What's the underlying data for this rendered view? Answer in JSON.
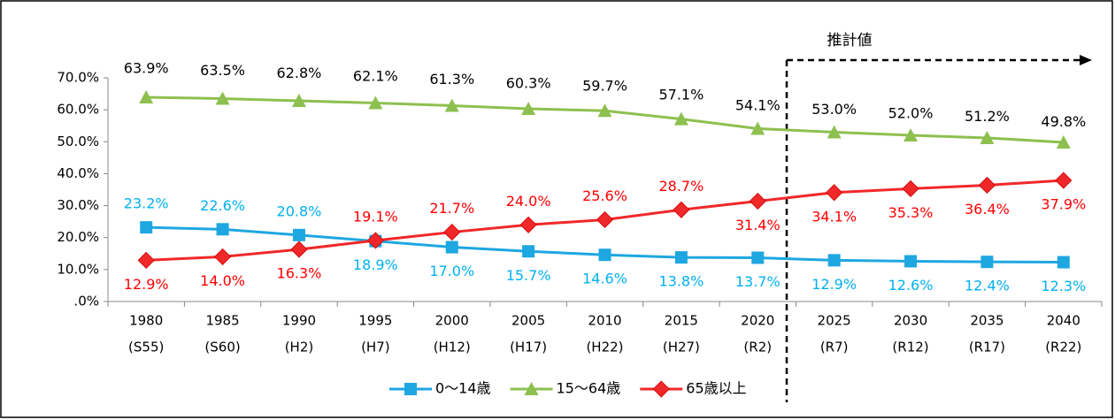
{
  "chart_data": {
    "type": "line",
    "annotation": "推計値",
    "categories": [
      [
        "1980",
        "(S55)"
      ],
      [
        "1985",
        "(S60)"
      ],
      [
        "1990",
        "(H2)"
      ],
      [
        "1995",
        "(H7)"
      ],
      [
        "2000",
        "(H12)"
      ],
      [
        "2005",
        "(H17)"
      ],
      [
        "2010",
        "(H22)"
      ],
      [
        "2015",
        "(H27)"
      ],
      [
        "2020",
        "(R2)"
      ],
      [
        "2025",
        "(R7)"
      ],
      [
        "2030",
        "(R12)"
      ],
      [
        "2035",
        "(R17)"
      ],
      [
        "2040",
        "(R22)"
      ]
    ],
    "ylim": [
      0,
      70
    ],
    "yticks": [
      {
        "value": 0,
        "label": ".0%"
      },
      {
        "value": 10,
        "label": "10.0%"
      },
      {
        "value": 20,
        "label": "20.0%"
      },
      {
        "value": 30,
        "label": "30.0%"
      },
      {
        "value": 40,
        "label": "40.0%"
      },
      {
        "value": 50,
        "label": "50.0%"
      },
      {
        "value": 60,
        "label": "60.0%"
      },
      {
        "value": 70,
        "label": "70.0%"
      }
    ],
    "legend": "bottom",
    "series": [
      {
        "name": "0〜14歳",
        "color": "#1ea7e1",
        "label_color": "#00b0f0",
        "marker": "square",
        "values": [
          23.2,
          22.6,
          20.8,
          18.9,
          17.0,
          15.7,
          14.6,
          13.8,
          13.7,
          12.9,
          12.6,
          12.4,
          12.3
        ],
        "value_labels": [
          "23.2%",
          "22.6%",
          "20.8%",
          "18.9%",
          "17.0%",
          "15.7%",
          "14.6%",
          "13.8%",
          "13.7%",
          "12.9%",
          "12.6%",
          "12.4%",
          "12.3%"
        ]
      },
      {
        "name": "15〜64歳",
        "color": "#8dc04f",
        "label_color": "#000000",
        "marker": "triangle",
        "values": [
          63.9,
          63.5,
          62.8,
          62.1,
          61.3,
          60.3,
          59.7,
          57.1,
          54.1,
          53.0,
          52.0,
          51.2,
          49.8
        ],
        "value_labels": [
          "63.9%",
          "63.5%",
          "62.8%",
          "62.1%",
          "61.3%",
          "60.3%",
          "59.7%",
          "57.1%",
          "54.1%",
          "53.0%",
          "52.0%",
          "51.2%",
          "49.8%"
        ]
      },
      {
        "name": "65歳以上",
        "color": "#f0282a",
        "label_color": "#ff0000",
        "marker": "diamond",
        "values": [
          12.9,
          14.0,
          16.3,
          19.1,
          21.7,
          24.0,
          25.6,
          28.7,
          31.4,
          34.1,
          35.3,
          36.4,
          37.9
        ],
        "value_labels": [
          "12.9%",
          "14.0%",
          "16.3%",
          "19.1%",
          "21.7%",
          "24.0%",
          "25.6%",
          "28.7%",
          "31.4%",
          "34.1%",
          "35.3%",
          "36.4%",
          "37.9%"
        ]
      }
    ]
  }
}
